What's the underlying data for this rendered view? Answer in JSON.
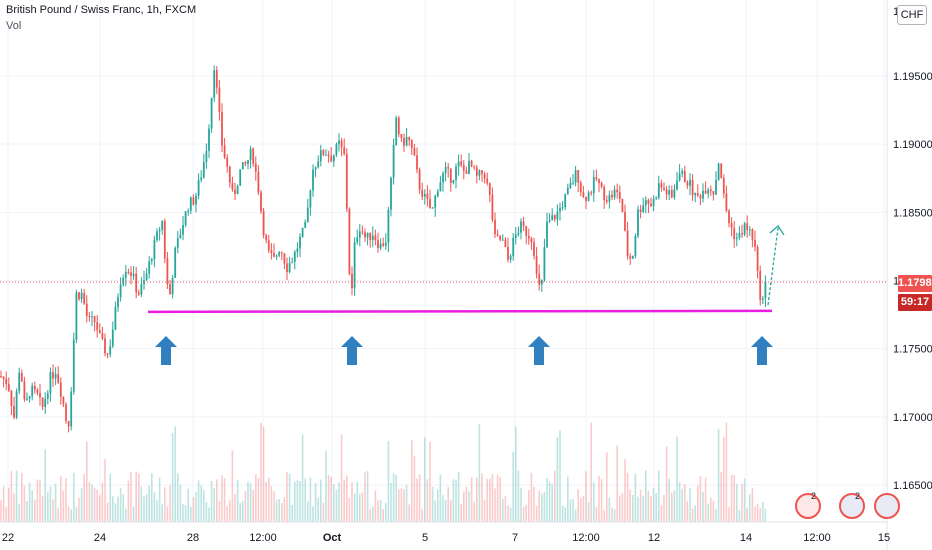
{
  "header": {
    "title": "British Pound / Swiss Franc, 1h, FXCM",
    "volume_label": "Vol"
  },
  "axis": {
    "currency": "CHF",
    "price_labels": [
      "1.19500",
      "1.19000",
      "1.18500",
      "1.18000",
      "1.17500",
      "1.17000",
      "1.16500"
    ],
    "partial_top_label": "1.2",
    "time_labels": [
      "22",
      "24",
      "28",
      "12:00",
      "Oct",
      "5",
      "7",
      "12:00",
      "12",
      "14",
      "12:00",
      "15"
    ],
    "current_price": "1.17989",
    "countdown": "59:17"
  },
  "badges": [
    {
      "name": "event-badge-1",
      "count": "2",
      "color": "#ef5350"
    },
    {
      "name": "event-badge-2",
      "count": "2",
      "color": "#3f51b5"
    },
    {
      "name": "event-badge-3",
      "count": "",
      "color": "#3f51b5"
    }
  ],
  "colors": {
    "up": "#26a69a",
    "down": "#ef5350",
    "support": "#e91ee0",
    "arrow": "#2f7fc1",
    "projection": "#26a69a"
  },
  "chart_data": {
    "type": "candlestick",
    "title": "British Pound / Swiss Franc, 1h, FXCM",
    "ylim": [
      1.163,
      1.2
    ],
    "y_ticks": [
      1.165,
      1.17,
      1.175,
      1.18,
      1.185,
      1.19,
      1.195
    ],
    "x_ticks": [
      "22",
      "24",
      "28",
      "12:00",
      "Oct",
      "5",
      "7",
      "12:00",
      "12",
      "14",
      "12:00",
      "15"
    ],
    "last_price": 1.17989,
    "support_level": 1.1777,
    "support_touches": 4,
    "price_path": [
      [
        0,
        1.173
      ],
      [
        8,
        1.1725
      ],
      [
        14,
        1.17
      ],
      [
        20,
        1.174
      ],
      [
        25,
        1.1705
      ],
      [
        30,
        1.172
      ],
      [
        38,
        1.1715
      ],
      [
        42,
        1.1705
      ],
      [
        50,
        1.1728
      ],
      [
        56,
        1.1735
      ],
      [
        62,
        1.1715
      ],
      [
        68,
        1.169
      ],
      [
        72,
        1.173
      ],
      [
        76,
        1.179
      ],
      [
        82,
        1.179
      ],
      [
        88,
        1.177
      ],
      [
        95,
        1.177
      ],
      [
        101,
        1.1755
      ],
      [
        108,
        1.1745
      ],
      [
        114,
        1.177
      ],
      [
        120,
        1.18
      ],
      [
        126,
        1.181
      ],
      [
        132,
        1.1805
      ],
      [
        138,
        1.179
      ],
      [
        145,
        1.18
      ],
      [
        152,
        1.182
      ],
      [
        158,
        1.1835
      ],
      [
        163,
        1.1845
      ],
      [
        166,
        1.18
      ],
      [
        170,
        1.179
      ],
      [
        175,
        1.182
      ],
      [
        182,
        1.184
      ],
      [
        188,
        1.1855
      ],
      [
        195,
        1.186
      ],
      [
        202,
        1.188
      ],
      [
        207,
        1.19
      ],
      [
        211,
        1.193
      ],
      [
        214,
        1.196
      ],
      [
        218,
        1.193
      ],
      [
        222,
        1.19
      ],
      [
        228,
        1.188
      ],
      [
        233,
        1.186
      ],
      [
        240,
        1.188
      ],
      [
        246,
        1.1885
      ],
      [
        252,
        1.1895
      ],
      [
        258,
        1.187
      ],
      [
        263,
        1.184
      ],
      [
        268,
        1.182
      ],
      [
        274,
        1.1815
      ],
      [
        280,
        1.1825
      ],
      [
        287,
        1.181
      ],
      [
        294,
        1.1818
      ],
      [
        300,
        1.183
      ],
      [
        306,
        1.184
      ],
      [
        312,
        1.188
      ],
      [
        318,
        1.189
      ],
      [
        325,
        1.1895
      ],
      [
        332,
        1.189
      ],
      [
        339,
        1.19
      ],
      [
        345,
        1.189
      ],
      [
        348,
        1.183
      ],
      [
        351,
        1.178
      ],
      [
        355,
        1.183
      ],
      [
        360,
        1.184
      ],
      [
        366,
        1.183
      ],
      [
        373,
        1.1835
      ],
      [
        380,
        1.1825
      ],
      [
        386,
        1.183
      ],
      [
        392,
        1.188
      ],
      [
        396,
        1.192
      ],
      [
        401,
        1.19
      ],
      [
        408,
        1.1905
      ],
      [
        414,
        1.189
      ],
      [
        419,
        1.187
      ],
      [
        425,
        1.186
      ],
      [
        432,
        1.185
      ],
      [
        438,
        1.187
      ],
      [
        445,
        1.188
      ],
      [
        452,
        1.1875
      ],
      [
        458,
        1.1885
      ],
      [
        464,
        1.188
      ],
      [
        470,
        1.1885
      ],
      [
        477,
        1.1875
      ],
      [
        484,
        1.188
      ],
      [
        490,
        1.186
      ],
      [
        495,
        1.183
      ],
      [
        502,
        1.183
      ],
      [
        508,
        1.1815
      ],
      [
        514,
        1.183
      ],
      [
        520,
        1.184
      ],
      [
        527,
        1.1835
      ],
      [
        533,
        1.183
      ],
      [
        537,
        1.18
      ],
      [
        541,
        1.179
      ],
      [
        546,
        1.184
      ],
      [
        552,
        1.1845
      ],
      [
        558,
        1.185
      ],
      [
        565,
        1.186
      ],
      [
        571,
        1.187
      ],
      [
        577,
        1.188
      ],
      [
        583,
        1.186
      ],
      [
        590,
        1.1865
      ],
      [
        596,
        1.1875
      ],
      [
        602,
        1.1865
      ],
      [
        608,
        1.186
      ],
      [
        615,
        1.1865
      ],
      [
        621,
        1.186
      ],
      [
        627,
        1.182
      ],
      [
        632,
        1.1815
      ],
      [
        638,
        1.185
      ],
      [
        645,
        1.186
      ],
      [
        652,
        1.1855
      ],
      [
        659,
        1.187
      ],
      [
        666,
        1.1865
      ],
      [
        672,
        1.186
      ],
      [
        678,
        1.188
      ],
      [
        685,
        1.1875
      ],
      [
        690,
        1.187
      ],
      [
        696,
        1.186
      ],
      [
        702,
        1.1865
      ],
      [
        708,
        1.187
      ],
      [
        714,
        1.1865
      ],
      [
        719,
        1.189
      ],
      [
        724,
        1.186
      ],
      [
        728,
        1.1845
      ],
      [
        733,
        1.1835
      ],
      [
        738,
        1.183
      ],
      [
        744,
        1.184
      ],
      [
        750,
        1.1835
      ],
      [
        754,
        1.183
      ],
      [
        758,
        1.18
      ],
      [
        762,
        1.1782
      ],
      [
        766,
        1.1799
      ]
    ]
  }
}
